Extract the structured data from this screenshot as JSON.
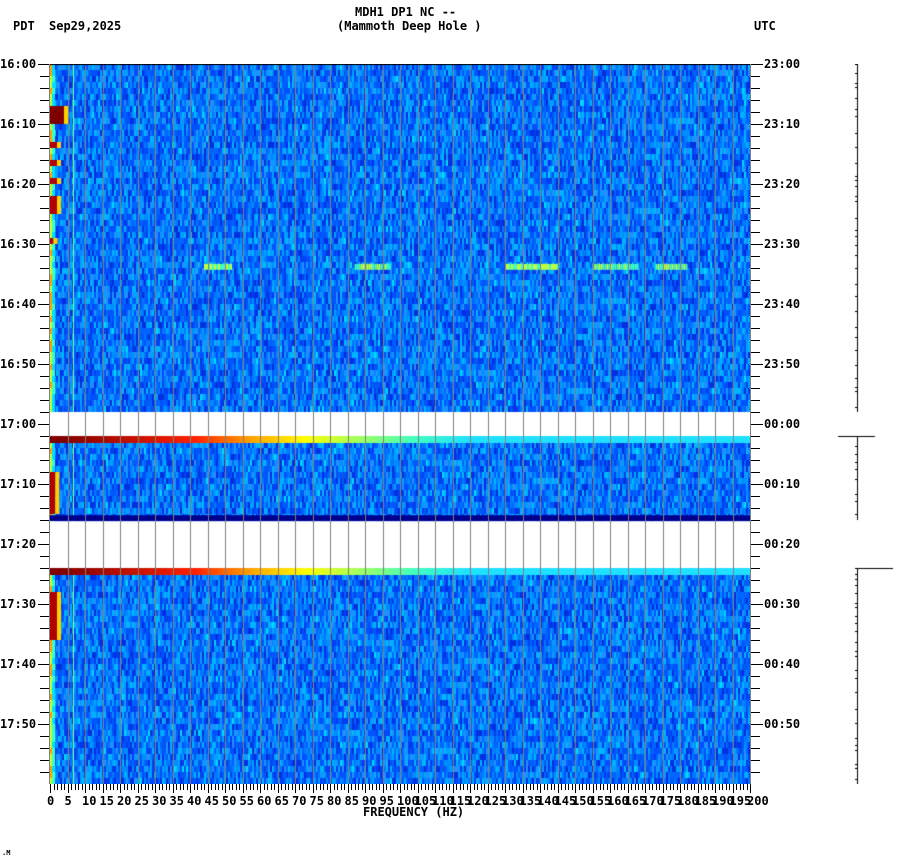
{
  "header": {
    "station_line": "MDH1 DP1 NC --",
    "site_line": "(Mammoth Deep Hole )",
    "left_tz": "PDT",
    "date": "Sep29,2025",
    "right_tz": "UTC"
  },
  "footer_mark": ".M",
  "chart_data": {
    "type": "heatmap",
    "title": "MDH1 DP1 NC -- (Mammoth Deep Hole )",
    "xlabel": "FREQUENCY (HZ)",
    "ylabel_left": "PDT",
    "ylabel_right": "UTC",
    "date": "Sep29,2025",
    "xlim": [
      0,
      200
    ],
    "x_ticks": [
      0,
      5,
      10,
      15,
      20,
      25,
      30,
      35,
      40,
      45,
      50,
      55,
      60,
      65,
      70,
      75,
      80,
      85,
      90,
      95,
      100,
      105,
      110,
      115,
      120,
      125,
      130,
      135,
      140,
      145,
      150,
      155,
      160,
      165,
      170,
      175,
      180,
      185,
      190,
      195,
      200
    ],
    "x_tick_labels": [
      "0",
      "5",
      "10",
      "15",
      "20",
      "25",
      "30",
      "35",
      "40",
      "45",
      "50",
      "55",
      "60",
      "65",
      "70",
      "75",
      "80",
      "85",
      "90",
      "95",
      "100",
      "105",
      "110",
      "115",
      "120",
      "125",
      "130",
      "135",
      "140",
      "145",
      "150",
      "155",
      "160",
      "165",
      "170",
      "175",
      "180",
      "185",
      "190",
      "195",
      "200"
    ],
    "y_range_minutes": [
      0,
      120
    ],
    "y_ticks_left": [
      "16:00",
      "16:10",
      "16:20",
      "16:30",
      "16:40",
      "16:50",
      "17:00",
      "17:10",
      "17:20",
      "17:30",
      "17:40",
      "17:50"
    ],
    "y_ticks_right": [
      "23:00",
      "23:10",
      "23:20",
      "23:30",
      "23:40",
      "23:50",
      "00:00",
      "00:10",
      "00:20",
      "00:30",
      "00:40",
      "00:50"
    ],
    "grid": "vertical every 5 Hz",
    "colormap": "jet",
    "background_level": "blue (low power)",
    "persistent_lines_hz": [
      {
        "freq": 6.5,
        "color": "#7fff7f",
        "note": "green vertical line"
      },
      {
        "freq": 60,
        "color": "#c8ff50",
        "note": "60 Hz power line"
      },
      {
        "freq": 180,
        "color": "#80ffb0",
        "note": "180 Hz harmonic"
      }
    ],
    "low_freq_events": [
      {
        "start_min": 7,
        "end_min": 10,
        "max_hz": 4,
        "color": "#800000"
      },
      {
        "start_min": 13,
        "end_min": 14,
        "max_hz": 2,
        "color": "#b00000"
      },
      {
        "start_min": 16,
        "end_min": 17,
        "max_hz": 2,
        "color": "#b00000"
      },
      {
        "start_min": 19,
        "end_min": 20,
        "max_hz": 2,
        "color": "#b00000"
      },
      {
        "start_min": 22,
        "end_min": 25,
        "max_hz": 2,
        "color": "#b00000"
      },
      {
        "start_min": 29,
        "end_min": 30,
        "max_hz": 1,
        "color": "#b00000"
      },
      {
        "start_min": 68,
        "end_min": 75,
        "max_hz": 1.5,
        "color": "#b00000"
      },
      {
        "start_min": 88,
        "end_min": 96,
        "max_hz": 2,
        "color": "#b00000"
      }
    ],
    "narrowband_burst": {
      "minute": 33.3,
      "segments_hz": [
        [
          44,
          52
        ],
        [
          87,
          97
        ],
        [
          130,
          145
        ],
        [
          155,
          168
        ],
        [
          173,
          182
        ]
      ],
      "color": "#c0ff40"
    },
    "data_gaps_minutes": [
      {
        "start": 58,
        "end": 62,
        "fill": "#ffffff"
      },
      {
        "start": 75.2,
        "end": 76.2,
        "fill": "#00008f"
      },
      {
        "start": 76.2,
        "end": 84,
        "fill": "#ffffff"
      }
    ],
    "edge_bands_minutes": [
      {
        "start": 62,
        "end": 63,
        "gradient": [
          "#800000",
          "#800000",
          "#ff2000",
          "#ffa000",
          "#ffff00",
          "#a0ff60",
          "#40ffc0",
          "#20e0ff"
        ]
      },
      {
        "start": 84,
        "end": 85,
        "gradient": [
          "#800000",
          "#800000",
          "#ff2000",
          "#ffa000",
          "#ffff00",
          "#a0ff60",
          "#40ffc0",
          "#20e0ff"
        ]
      }
    ],
    "trace_segments_minutes": [
      {
        "start": 0,
        "end": 58,
        "top_tick": false
      },
      {
        "start": 62,
        "end": 76,
        "top_tick": true
      },
      {
        "start": 84,
        "end": 120,
        "top_tick": true
      }
    ]
  }
}
